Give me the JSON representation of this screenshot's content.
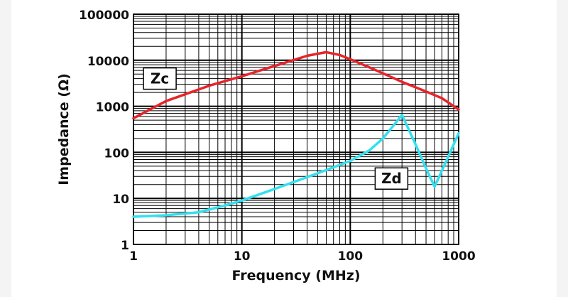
{
  "chart_data": {
    "type": "line",
    "title": "",
    "xlabel": "Frequency (MHz)",
    "ylabel": "Impedance (Ω)",
    "x_scale": "log",
    "y_scale": "log",
    "xlim": [
      1,
      1000
    ],
    "ylim": [
      1,
      100000
    ],
    "x_ticks": [
      "1",
      "10",
      "100",
      "1000"
    ],
    "y_ticks": [
      "1",
      "10",
      "100",
      "1000",
      "10000",
      "100000"
    ],
    "grid": true,
    "legend": "none",
    "series": [
      {
        "name": "Zc",
        "color": "#e8232a",
        "x": [
          1,
          2,
          5,
          10,
          20,
          40,
          60,
          80,
          100,
          150,
          200,
          300,
          500,
          700,
          1000
        ],
        "y": [
          550,
          1300,
          2800,
          4500,
          7500,
          12500,
          15000,
          13000,
          10500,
          7000,
          5200,
          3400,
          2100,
          1500,
          850
        ]
      },
      {
        "name": "Zd",
        "color": "#33e0ee",
        "x": [
          1,
          2,
          4,
          7,
          10,
          20,
          50,
          100,
          150,
          200,
          250,
          300,
          400,
          500,
          600,
          700,
          800,
          1000
        ],
        "y": [
          4,
          4.3,
          5,
          7,
          9,
          16,
          35,
          65,
          110,
          200,
          380,
          650,
          150,
          45,
          18,
          40,
          80,
          260
        ]
      }
    ],
    "annotations": [
      {
        "text": "Zc",
        "series": "Zc",
        "x": 1.75,
        "y": 4000
      },
      {
        "text": "Zd",
        "series": "Zd",
        "x": 240,
        "y": 27
      }
    ]
  }
}
